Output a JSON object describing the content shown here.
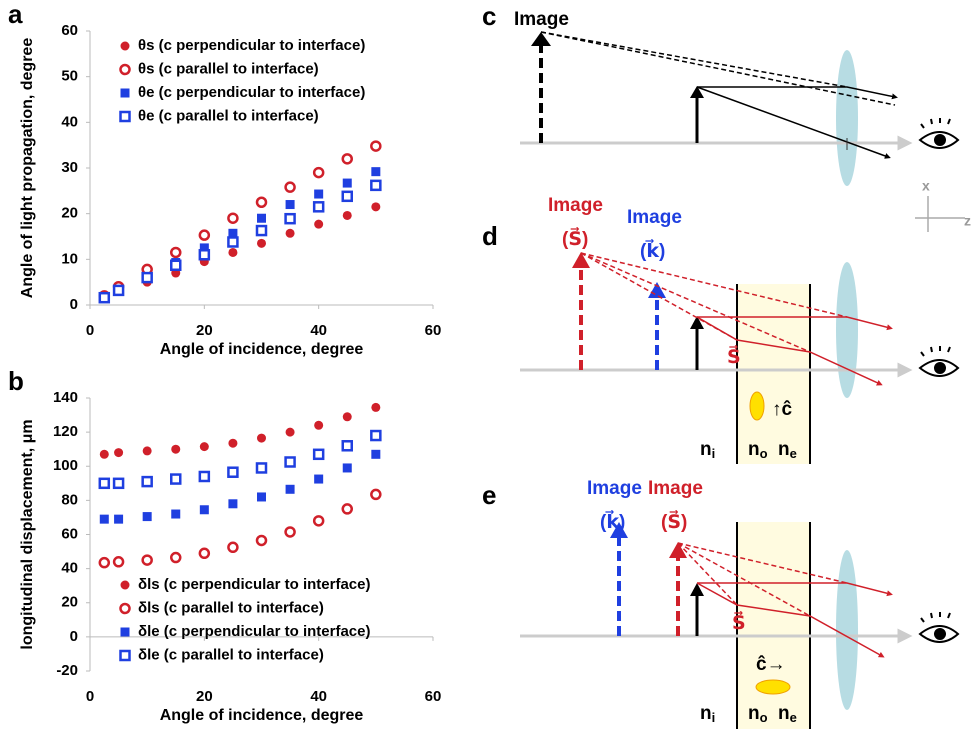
{
  "chart_data": [
    {
      "type": "scatter",
      "panel": "a",
      "x_label": "Angle of incidence, degree",
      "y_label": "Angle of light propagation, degree",
      "xlim": [
        0,
        60
      ],
      "xticks": [
        0,
        20,
        40,
        60
      ],
      "ylim": [
        0,
        60
      ],
      "yticks": [
        0,
        10,
        20,
        30,
        40,
        50,
        60
      ],
      "legend": "upper left",
      "x": [
        2.5,
        5,
        10,
        15,
        20,
        25,
        30,
        35,
        40,
        45,
        50
      ],
      "series": [
        {
          "name": "θs (c perpendicular to interface)",
          "color": "#d0202a",
          "marker": "circle",
          "filled": true,
          "values": [
            1.5,
            3,
            5,
            7,
            9.5,
            11.5,
            13.5,
            15.7,
            17.7,
            19.6,
            21.5
          ]
        },
        {
          "name": "θs (c parallel to interface)",
          "color": "#d0202a",
          "marker": "circle",
          "filled": false,
          "values": [
            2,
            4,
            7.8,
            11.5,
            15.3,
            19,
            22.5,
            25.8,
            29,
            32,
            34.8
          ]
        },
        {
          "name": "θe (c perpendicular to interface)",
          "color": "#1f3fe0",
          "marker": "square",
          "filled": true,
          "values": [
            1.7,
            3.3,
            6.2,
            9.3,
            12.5,
            15.7,
            19,
            22,
            24.3,
            26.7,
            29.2
          ]
        },
        {
          "name": "θe (c parallel to interface)",
          "color": "#1f3fe0",
          "marker": "square",
          "filled": false,
          "values": [
            1.6,
            3.2,
            6,
            8.7,
            11,
            13.8,
            16.3,
            18.9,
            21.5,
            23.8,
            26.2
          ]
        }
      ]
    },
    {
      "type": "scatter",
      "panel": "b",
      "x_label": "Angle of incidence, degree",
      "y_label": "longitudinal displacement, μm",
      "xlim": [
        0,
        60
      ],
      "xticks": [
        0,
        20,
        40,
        60
      ],
      "ylim": [
        -20,
        140
      ],
      "yticks": [
        -20,
        0,
        20,
        40,
        60,
        80,
        100,
        120,
        140
      ],
      "legend": "lower left",
      "x": [
        2.5,
        5,
        10,
        15,
        20,
        25,
        30,
        35,
        40,
        45,
        50
      ],
      "series": [
        {
          "name": "δls (c perpendicular to interface)",
          "color": "#d0202a",
          "marker": "circle",
          "filled": true,
          "values": [
            107,
            108,
            109,
            110,
            111.5,
            113.5,
            116.5,
            120,
            124,
            129,
            134.5
          ]
        },
        {
          "name": "δls (c parallel to interface)",
          "color": "#d0202a",
          "marker": "circle",
          "filled": false,
          "values": [
            43.5,
            44,
            45,
            46.5,
            49,
            52.5,
            56.5,
            61.5,
            68,
            75,
            83.5
          ]
        },
        {
          "name": "δle (c perpendicular to interface)",
          "color": "#1f3fe0",
          "marker": "square",
          "filled": true,
          "values": [
            69,
            69,
            70.5,
            72,
            74.5,
            78,
            82,
            86.5,
            92.5,
            99,
            107
          ]
        },
        {
          "name": "δle (c parallel to interface)",
          "color": "#1f3fe0",
          "marker": "square",
          "filled": false,
          "values": [
            90,
            90,
            91,
            92.5,
            94,
            96.5,
            99,
            102.5,
            107,
            112,
            118
          ]
        }
      ]
    }
  ],
  "diagrams": {
    "c": {
      "label": "c",
      "image": "Image",
      "axis_x": "x",
      "axis_z": "z"
    },
    "d": {
      "label": "d",
      "image_s": "Image",
      "sym_s": "(S⃗)",
      "image_k": "Image",
      "sym_k": "(k⃗)",
      "ray_s": "S⃗",
      "c_axis": "↑ĉ",
      "n": "n",
      "i": "i",
      "o": "o",
      "e": "e"
    },
    "e": {
      "label": "e",
      "image_k": "Image",
      "sym_k": "(k⃗)",
      "image_s": "Image",
      "sym_s": "(S⃗)",
      "ray_s": "S⃗",
      "c_axis": "ĉ→",
      "n": "n",
      "i": "i",
      "o": "o",
      "e": "e"
    }
  }
}
